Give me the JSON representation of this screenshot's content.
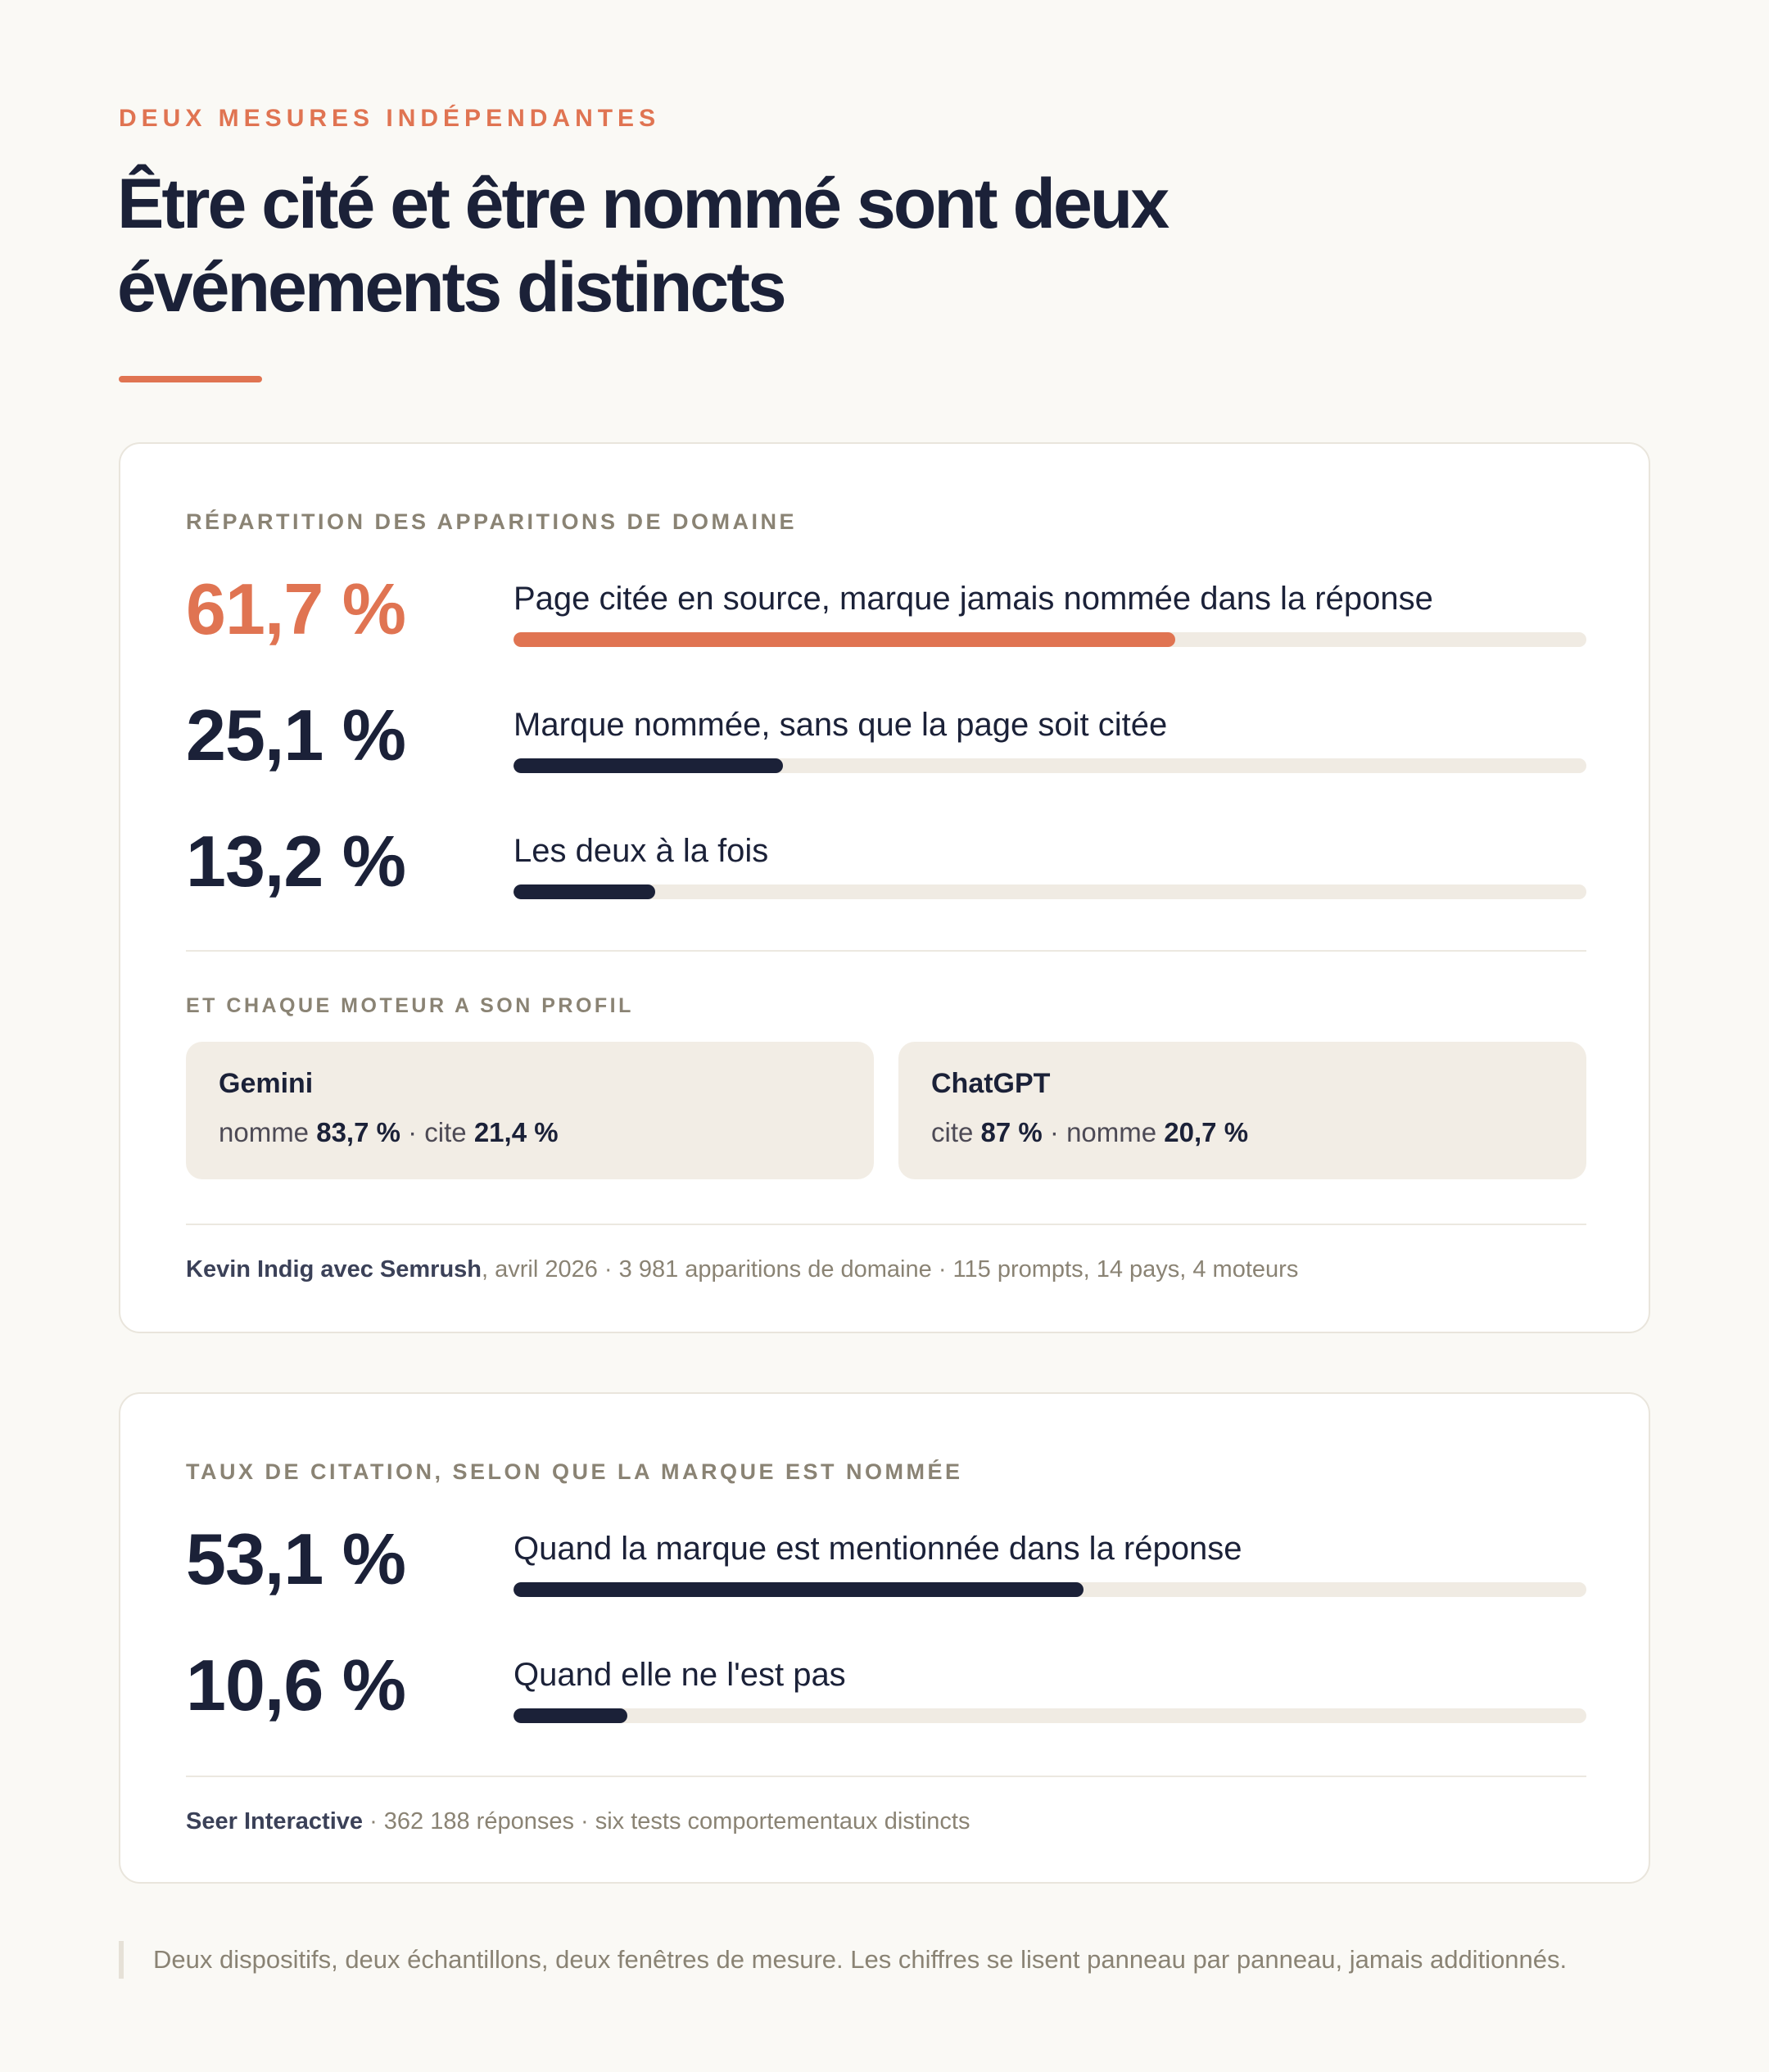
{
  "header": {
    "kicker": "DEUX MESURES INDÉPENDANTES",
    "title": "Être cité et être nommé sont deux événements distincts"
  },
  "panel1": {
    "label": "RÉPARTITION DES APPARITIONS DE DOMAINE",
    "stats": [
      {
        "value": "61,7 %",
        "desc": "Page citée en source, marque jamais nommée dans la réponse"
      },
      {
        "value": "25,1 %",
        "desc": "Marque nommée, sans que la page soit citée"
      },
      {
        "value": "13,2 %",
        "desc": "Les deux à la fois"
      }
    ],
    "engines_label": "ET CHAQUE MOTEUR A SON PROFIL",
    "engines": [
      {
        "name": "Gemini",
        "m1_label": "nomme",
        "m1_value": "83,7 %",
        "sep": " · ",
        "m2_label": "cite",
        "m2_value": "21,4 %"
      },
      {
        "name": "ChatGPT",
        "m1_label": "cite",
        "m1_value": "87 %",
        "sep": " · ",
        "m2_label": "nomme",
        "m2_value": "20,7 %"
      }
    ],
    "source_bold": "Kevin Indig avec Semrush",
    "source_rest": ", avril 2026 · 3 981 apparitions de domaine · 115 prompts, 14 pays, 4 moteurs"
  },
  "panel2": {
    "label": "TAUX DE CITATION, SELON QUE LA MARQUE EST NOMMÉE",
    "stats": [
      {
        "value": "53,1 %",
        "desc": "Quand la marque est mentionnée dans la réponse"
      },
      {
        "value": "10,6 %",
        "desc": "Quand elle ne l'est pas"
      }
    ],
    "source_bold": "Seer Interactive",
    "source_rest": " · 362 188 réponses · six tests comportementaux distincts"
  },
  "footnote": "Deux dispositifs, deux échantillons, deux fenêtres de mesure. Les chiffres se lisent panneau par panneau, jamais additionnés.",
  "colors": {
    "accent": "#e07452",
    "navy": "#1b2138",
    "track": "#f0ebe3",
    "background": "#faf9f5"
  },
  "chart_data": [
    {
      "type": "bar",
      "orientation": "horizontal",
      "title": "RÉPARTITION DES APPARITIONS DE DOMAINE",
      "categories": [
        "Page citée en source, marque jamais nommée dans la réponse",
        "Marque nommée, sans que la page soit citée",
        "Les deux à la fois"
      ],
      "values": [
        61.7,
        25.1,
        13.2
      ],
      "unit": "%",
      "xlim": [
        0,
        100
      ],
      "highlight_index": 0,
      "grid": false
    },
    {
      "type": "bar",
      "orientation": "horizontal",
      "title": "TAUX DE CITATION, SELON QUE LA MARQUE EST NOMMÉE",
      "categories": [
        "Quand la marque est mentionnée dans la réponse",
        "Quand elle ne l'est pas"
      ],
      "values": [
        53.1,
        10.6
      ],
      "unit": "%",
      "xlim": [
        0,
        100
      ],
      "grid": false
    }
  ]
}
